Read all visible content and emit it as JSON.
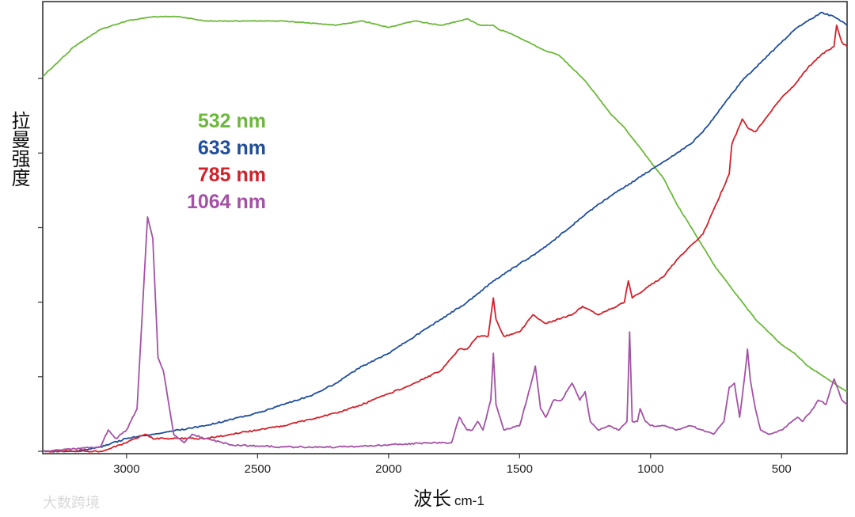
{
  "chart_data": {
    "type": "line",
    "title": "",
    "xlabel": "波长",
    "xunit": "cm-1",
    "ylabel": "拉曼强度",
    "xlim": [
      3320,
      250
    ],
    "ylim": [
      0,
      1.05
    ],
    "x_ticks": [
      3000,
      2500,
      2000,
      1500,
      1000,
      500
    ],
    "x_tick_labels": [
      "3000",
      "2500",
      "2000",
      "1500",
      "1000",
      "500"
    ],
    "y_tick_count": 6,
    "grid": false,
    "series": [
      {
        "name": "532 nm",
        "color": "#6cb83a",
        "x": [
          3320,
          3200,
          3100,
          3000,
          2900,
          2800,
          2700,
          2600,
          2500,
          2400,
          2300,
          2200,
          2100,
          2000,
          1900,
          1800,
          1700,
          1650,
          1600,
          1580,
          1550,
          1500,
          1450,
          1400,
          1350,
          1300,
          1250,
          1200,
          1150,
          1100,
          1050,
          1000,
          950,
          900,
          850,
          800,
          750,
          700,
          650,
          600,
          550,
          500,
          450,
          400,
          350,
          300,
          250
        ],
        "y": [
          0.88,
          0.95,
          0.99,
          1.01,
          1.02,
          1.02,
          1.01,
          1.01,
          1.01,
          1.01,
          1.005,
          1.0,
          1.01,
          0.995,
          1.01,
          1.0,
          1.015,
          1.0,
          1.0,
          0.99,
          0.985,
          0.97,
          0.955,
          0.94,
          0.93,
          0.9,
          0.87,
          0.83,
          0.79,
          0.76,
          0.72,
          0.68,
          0.64,
          0.58,
          0.53,
          0.48,
          0.43,
          0.39,
          0.35,
          0.31,
          0.28,
          0.25,
          0.23,
          0.2,
          0.18,
          0.16,
          0.14
        ]
      },
      {
        "name": "633 nm",
        "color": "#1f4e9b",
        "x": [
          3320,
          3200,
          3100,
          3000,
          2900,
          2800,
          2700,
          2600,
          2500,
          2400,
          2300,
          2200,
          2100,
          2000,
          1900,
          1800,
          1700,
          1600,
          1500,
          1400,
          1300,
          1200,
          1100,
          1050,
          1000,
          950,
          900,
          850,
          800,
          750,
          700,
          650,
          600,
          550,
          500,
          450,
          400,
          350,
          300,
          250
        ],
        "y": [
          0.0,
          0.0,
          0.01,
          0.03,
          0.04,
          0.05,
          0.06,
          0.075,
          0.09,
          0.11,
          0.13,
          0.16,
          0.2,
          0.23,
          0.27,
          0.31,
          0.35,
          0.4,
          0.44,
          0.48,
          0.53,
          0.58,
          0.62,
          0.64,
          0.66,
          0.68,
          0.7,
          0.72,
          0.75,
          0.79,
          0.83,
          0.87,
          0.9,
          0.93,
          0.96,
          0.99,
          1.01,
          1.03,
          1.02,
          1.0
        ]
      },
      {
        "name": "785 nm",
        "color": "#d3212a",
        "x": [
          3320,
          3100,
          3000,
          2930,
          2900,
          2800,
          2700,
          2600,
          2500,
          2400,
          2300,
          2200,
          2100,
          2000,
          1900,
          1800,
          1730,
          1700,
          1660,
          1620,
          1600,
          1590,
          1560,
          1500,
          1450,
          1400,
          1300,
          1260,
          1200,
          1100,
          1085,
          1070,
          1000,
          950,
          900,
          800,
          750,
          700,
          690,
          650,
          630,
          600,
          550,
          500,
          450,
          400,
          350,
          300,
          290,
          270,
          250
        ],
        "y": [
          0.0,
          0.0,
          0.02,
          0.04,
          0.03,
          0.03,
          0.03,
          0.04,
          0.05,
          0.06,
          0.075,
          0.09,
          0.11,
          0.135,
          0.16,
          0.19,
          0.24,
          0.24,
          0.27,
          0.27,
          0.36,
          0.31,
          0.27,
          0.28,
          0.32,
          0.3,
          0.32,
          0.34,
          0.32,
          0.35,
          0.4,
          0.36,
          0.39,
          0.41,
          0.45,
          0.51,
          0.58,
          0.65,
          0.72,
          0.78,
          0.76,
          0.75,
          0.79,
          0.83,
          0.86,
          0.9,
          0.93,
          0.95,
          1.0,
          0.96,
          0.95
        ]
      },
      {
        "name": "1064 nm",
        "color": "#a451a6",
        "x": [
          3320,
          3100,
          3070,
          3040,
          3000,
          2960,
          2930,
          2920,
          2900,
          2880,
          2860,
          2820,
          2780,
          2750,
          2700,
          2600,
          2400,
          2200,
          2000,
          1850,
          1760,
          1730,
          1700,
          1680,
          1660,
          1640,
          1610,
          1600,
          1590,
          1560,
          1500,
          1460,
          1440,
          1420,
          1400,
          1370,
          1340,
          1300,
          1270,
          1250,
          1230,
          1200,
          1160,
          1120,
          1090,
          1080,
          1070,
          1050,
          1040,
          1020,
          1000,
          950,
          900,
          850,
          800,
          760,
          720,
          700,
          680,
          660,
          640,
          630,
          620,
          600,
          580,
          550,
          500,
          460,
          440,
          420,
          380,
          360,
          330,
          320,
          300,
          270,
          250
        ],
        "y": [
          0.0,
          0.01,
          0.05,
          0.03,
          0.05,
          0.1,
          0.44,
          0.55,
          0.5,
          0.22,
          0.19,
          0.04,
          0.02,
          0.04,
          0.03,
          0.015,
          0.01,
          0.01,
          0.015,
          0.02,
          0.02,
          0.08,
          0.05,
          0.05,
          0.07,
          0.05,
          0.12,
          0.23,
          0.11,
          0.05,
          0.06,
          0.15,
          0.2,
          0.1,
          0.08,
          0.12,
          0.12,
          0.16,
          0.12,
          0.14,
          0.07,
          0.05,
          0.06,
          0.05,
          0.07,
          0.28,
          0.07,
          0.07,
          0.1,
          0.07,
          0.06,
          0.06,
          0.05,
          0.06,
          0.05,
          0.04,
          0.07,
          0.15,
          0.16,
          0.08,
          0.18,
          0.24,
          0.17,
          0.1,
          0.05,
          0.04,
          0.05,
          0.07,
          0.08,
          0.07,
          0.1,
          0.12,
          0.11,
          0.13,
          0.17,
          0.12,
          0.11
        ]
      }
    ],
    "legend": {
      "position": "upper-left",
      "entries": [
        {
          "label": "532 nm",
          "color": "#6cb83a"
        },
        {
          "label": "633 nm",
          "color": "#1f4e9b"
        },
        {
          "label": "785 nm",
          "color": "#d3212a"
        },
        {
          "label": "1064 nm",
          "color": "#a451a6"
        }
      ]
    },
    "watermark": "大数跨境"
  }
}
